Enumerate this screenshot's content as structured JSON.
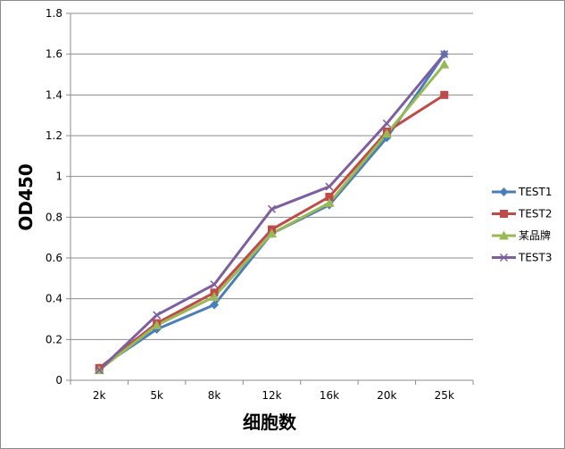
{
  "chart_data": {
    "type": "line",
    "title": "",
    "xlabel": "细胞数",
    "ylabel": "OD450",
    "categories": [
      "2k",
      "5k",
      "8k",
      "12k",
      "16k",
      "20k",
      "25k"
    ],
    "ylim": [
      0,
      1.8
    ],
    "yticks": [
      "0",
      "0.2",
      "0.4",
      "0.6",
      "0.8",
      "1",
      "1.2",
      "1.4",
      "1.6",
      "1.8"
    ],
    "grid": "horizontal",
    "legend": "right",
    "series": [
      {
        "name": "TEST1",
        "color": "#4a7ebb",
        "marker": "diamond",
        "values": [
          0.06,
          0.25,
          0.37,
          0.72,
          0.86,
          1.19,
          1.6
        ]
      },
      {
        "name": "TEST2",
        "color": "#be4b48",
        "marker": "square",
        "values": [
          0.06,
          0.28,
          0.43,
          0.74,
          0.9,
          1.22,
          1.4
        ]
      },
      {
        "name": "某品牌",
        "color": "#98b954",
        "marker": "triangle",
        "values": [
          0.05,
          0.27,
          0.41,
          0.72,
          0.87,
          1.21,
          1.55
        ]
      },
      {
        "name": "TEST3",
        "color": "#7d5fa0",
        "marker": "x",
        "values": [
          0.05,
          0.32,
          0.47,
          0.84,
          0.95,
          1.26,
          1.6
        ]
      }
    ]
  }
}
